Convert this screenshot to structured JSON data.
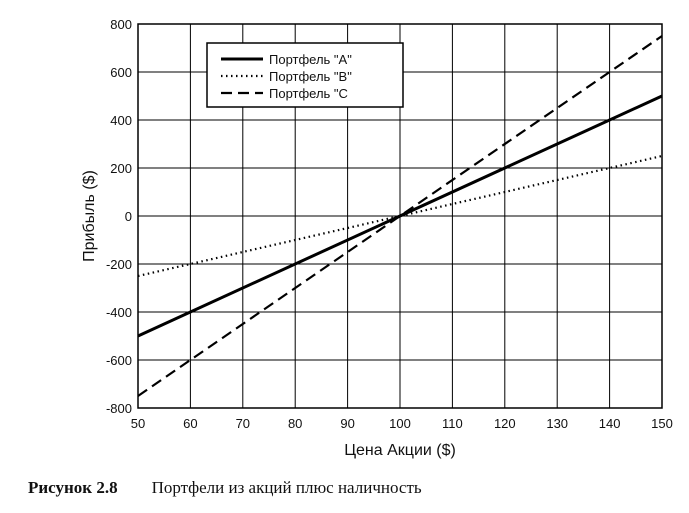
{
  "chart_data": {
    "type": "line",
    "xlabel": "Цена Акции ($)",
    "ylabel": "Прибыль ($)",
    "xlim": [
      50,
      150
    ],
    "ylim": [
      -800,
      800
    ],
    "x_ticks": [
      50,
      60,
      70,
      80,
      90,
      100,
      110,
      120,
      130,
      140,
      150
    ],
    "y_ticks": [
      -800,
      -600,
      -400,
      -200,
      0,
      200,
      400,
      600,
      800
    ],
    "grid": true,
    "legend_position": "top-left",
    "series": [
      {
        "name": "Портфель \"A\"",
        "style": "solid",
        "x": [
          50,
          150
        ],
        "y": [
          -500,
          500
        ]
      },
      {
        "name": "Портфель \"B\"",
        "style": "dotted",
        "x": [
          50,
          150
        ],
        "y": [
          -250,
          250
        ]
      },
      {
        "name": "Портфель \"C",
        "style": "dashed",
        "x": [
          50,
          150
        ],
        "y": [
          -750,
          750
        ]
      }
    ]
  },
  "caption": {
    "label": "Рисунок 2.8",
    "text": "Портфели из акций плюс наличность"
  }
}
